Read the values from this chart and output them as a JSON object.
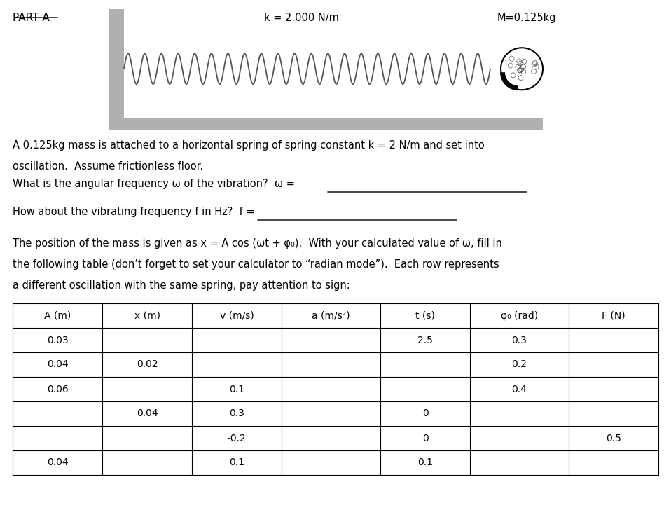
{
  "title": "PART A",
  "k_label": "k = 2.000 N/m",
  "M_label": "M=0.125kg",
  "paragraph1": "A 0.125kg mass is attached to a horizontal spring of spring constant k = 2 N/m and set into\noscillation.  Assume frictionless floor.",
  "q1": "What is the angular frequency ω of the vibration?  ω =",
  "q2": "How about the vibrating frequency f in Hz?  f =",
  "paragraph2_line1": "The position of the mass is given as x = A cos (ωt + φ₀).  With your calculated value of ω, fill in",
  "paragraph2_line2": "the following table (don’t forget to set your calculator to “radian mode”).  Each row represents",
  "paragraph2_line3": "a different oscillation with the same spring, pay attention to sign:",
  "table_headers": [
    "A (m)",
    "x (m)",
    "v (m/s)",
    "a (m/s²)",
    "t (s)",
    "φ₀ (rad)",
    "F (N)"
  ],
  "table_data": [
    [
      "0.03",
      "",
      "",
      "",
      "2.5",
      "0.3",
      ""
    ],
    [
      "0.04",
      "0.02",
      "",
      "",
      "",
      "0.2",
      ""
    ],
    [
      "0.06",
      "",
      "0.1",
      "",
      "",
      "0.4",
      ""
    ],
    [
      "",
      "0.04",
      "0.3",
      "",
      "0",
      "",
      ""
    ],
    [
      "",
      "",
      "-0.2",
      "",
      "0",
      "",
      "0.5"
    ],
    [
      "0.04",
      "",
      "0.1",
      "",
      "0.1",
      "",
      ""
    ]
  ],
  "bg_color": "#ffffff",
  "wall_color": "#b0b0b0",
  "floor_color": "#b0b0b0",
  "spring_color": "#555555",
  "ball_color": "#222222"
}
